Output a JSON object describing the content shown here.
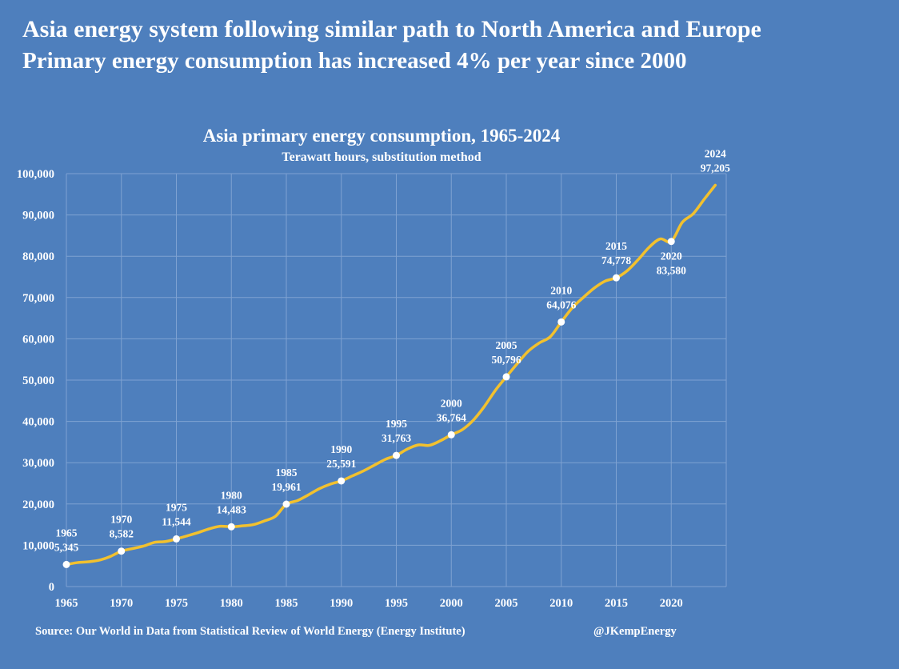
{
  "header": {
    "title": "Asia energy system following similar path to North America and Europe",
    "subtitle": "Primary energy consumption has increased 4% per year since 2000"
  },
  "footer": {
    "source": "Source: Our World in Data from Statistical Review of World Energy (Energy Institute)",
    "handle": "@JKempEnergy"
  },
  "colors": {
    "background": "#4e7fbd",
    "line": "#f2c12e",
    "grid": "#7fa2d2",
    "marker": "#ffffff"
  },
  "chart_data": {
    "type": "line",
    "title": "Asia primary energy consumption, 1965-2024",
    "subtitle": "Terawatt hours, substitution method",
    "xlabel": "",
    "ylabel": "",
    "xlim": [
      1965,
      2025
    ],
    "ylim": [
      0,
      100000
    ],
    "grid": true,
    "x_ticks": [
      1965,
      1970,
      1975,
      1980,
      1985,
      1990,
      1995,
      2000,
      2005,
      2010,
      2015,
      2020
    ],
    "x_tick_labels": [
      "1965",
      "1970",
      "1975",
      "1980",
      "1985",
      "1990",
      "1995",
      "2000",
      "2005",
      "2010",
      "2015",
      "2020"
    ],
    "y_ticks": [
      0,
      10000,
      20000,
      30000,
      40000,
      50000,
      60000,
      70000,
      80000,
      90000,
      100000
    ],
    "y_tick_labels": [
      "0",
      "10,000",
      "20,000",
      "30,000",
      "40,000",
      "50,000",
      "60,000",
      "70,000",
      "80,000",
      "90,000",
      "100,000"
    ],
    "series": [
      {
        "name": "Asia primary energy consumption",
        "x": [
          1965,
          1966,
          1967,
          1968,
          1969,
          1970,
          1971,
          1972,
          1973,
          1974,
          1975,
          1976,
          1977,
          1978,
          1979,
          1980,
          1981,
          1982,
          1983,
          1984,
          1985,
          1986,
          1987,
          1988,
          1989,
          1990,
          1991,
          1992,
          1993,
          1994,
          1995,
          1996,
          1997,
          1998,
          1999,
          2000,
          2001,
          2002,
          2003,
          2004,
          2005,
          2006,
          2007,
          2008,
          2009,
          2010,
          2011,
          2012,
          2013,
          2014,
          2015,
          2016,
          2017,
          2018,
          2019,
          2020,
          2021,
          2022,
          2023,
          2024
        ],
        "values": [
          5345,
          5800,
          6000,
          6400,
          7300,
          8582,
          9200,
          9800,
          10700,
          10900,
          11544,
          12300,
          13100,
          14000,
          14600,
          14483,
          14700,
          15000,
          15900,
          17000,
          19961,
          20800,
          22200,
          23700,
          24800,
          25591,
          26800,
          28000,
          29400,
          30800,
          31763,
          33300,
          34300,
          34200,
          35300,
          36764,
          38000,
          40300,
          43600,
          47500,
          50796,
          54000,
          57000,
          59000,
          60500,
          64076,
          67500,
          70000,
          72300,
          74000,
          74778,
          76500,
          79200,
          82200,
          84200,
          83580,
          88200,
          90300,
          93800,
          97205
        ]
      }
    ],
    "annotations": [
      {
        "year": "1965",
        "value": "5,345",
        "x": 1965,
        "y": 5345,
        "position": "above"
      },
      {
        "year": "1970",
        "value": "8,582",
        "x": 1970,
        "y": 8582,
        "position": "above"
      },
      {
        "year": "1975",
        "value": "11,544",
        "x": 1975,
        "y": 11544,
        "position": "above"
      },
      {
        "year": "1980",
        "value": "14,483",
        "x": 1980,
        "y": 14483,
        "position": "above"
      },
      {
        "year": "1985",
        "value": "19,961",
        "x": 1985,
        "y": 19961,
        "position": "above"
      },
      {
        "year": "1990",
        "value": "25,591",
        "x": 1990,
        "y": 25591,
        "position": "above"
      },
      {
        "year": "1995",
        "value": "31,763",
        "x": 1995,
        "y": 31763,
        "position": "above"
      },
      {
        "year": "2000",
        "value": "36,764",
        "x": 2000,
        "y": 36764,
        "position": "above"
      },
      {
        "year": "2005",
        "value": "50,796",
        "x": 2005,
        "y": 50796,
        "position": "above"
      },
      {
        "year": "2010",
        "value": "64,076",
        "x": 2010,
        "y": 64076,
        "position": "above"
      },
      {
        "year": "2015",
        "value": "74,778",
        "x": 2015,
        "y": 74778,
        "position": "above"
      },
      {
        "year": "2020",
        "value": "83,580",
        "x": 2020,
        "y": 83580,
        "position": "below"
      },
      {
        "year": "2024",
        "value": "97,205",
        "x": 2024,
        "y": 97205,
        "position": "above",
        "marker": false
      }
    ]
  }
}
